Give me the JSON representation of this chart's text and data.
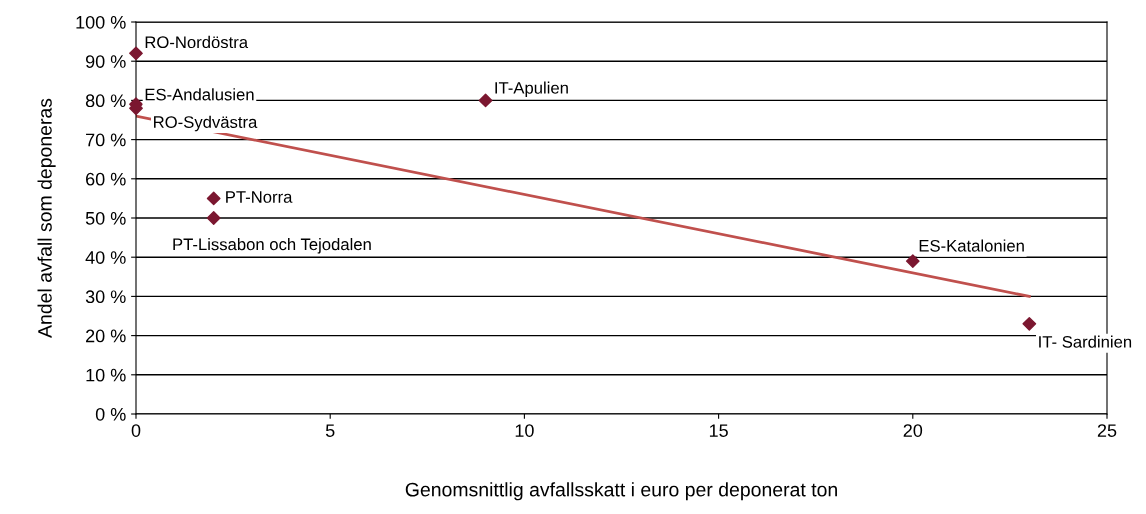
{
  "chart_data": {
    "type": "scatter",
    "xlabel": "Genomsnittlig avfallsskatt i euro per deponerat ton",
    "ylabel": "Andel avfall som deponeras",
    "series": [
      {
        "color": "#7b1730",
        "marker": "diamond",
        "x": [
          0,
          0,
          0,
          9,
          2,
          2,
          20,
          23
        ],
        "values": [
          92,
          79,
          78,
          80,
          55,
          50,
          39,
          23
        ]
      },
      {
        "type": "line",
        "color": "#c0504d",
        "marker": "none",
        "line_style": "solid",
        "x": [
          0,
          23
        ],
        "values": [
          76,
          30
        ]
      }
    ],
    "annotations": [
      {
        "text": "RO-Nordöstra",
        "x": 0,
        "y": 92
      },
      {
        "text": "ES-Andalusien",
        "x": 0,
        "y": 79
      },
      {
        "text": "RO-Sydvästra",
        "x": 0,
        "y": 78
      },
      {
        "text": "IT-Apulien",
        "x": 9,
        "y": 80
      },
      {
        "text": "PT-Norra",
        "x": 2,
        "y": 55
      },
      {
        "text": "PT-Lissabon och Tejodalen",
        "x": 2,
        "y": 50
      },
      {
        "text": "ES-Katalonien",
        "x": 20,
        "y": 39
      },
      {
        "text": "IT- Sardinien",
        "x": 23,
        "y": 23
      }
    ],
    "xlim": [
      0,
      25
    ],
    "xticks": [
      0,
      5,
      10,
      15,
      20,
      25
    ],
    "ylim": [
      0,
      100
    ],
    "yticks": [
      {
        "value": 0,
        "label": "0 %"
      },
      {
        "value": 10,
        "label": "10 %"
      },
      {
        "value": 20,
        "label": "20 %"
      },
      {
        "value": 30,
        "label": "30 %"
      },
      {
        "value": 40,
        "label": "40 %"
      },
      {
        "value": 50,
        "label": "50 %"
      },
      {
        "value": 60,
        "label": "60 %"
      },
      {
        "value": 70,
        "label": "70 %"
      },
      {
        "value": 80,
        "label": "80 %"
      },
      {
        "value": 90,
        "label": "90 %"
      },
      {
        "value": 100,
        "label": "100 %"
      }
    ],
    "grid": "y",
    "legend": false
  }
}
